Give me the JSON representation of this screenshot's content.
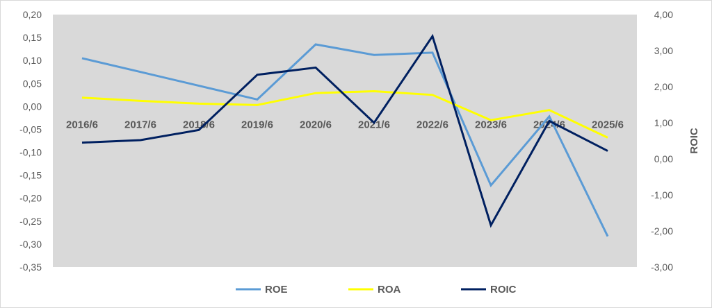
{
  "chart_data": {
    "type": "line",
    "categories": [
      "2016/6",
      "2017/6",
      "2018/6",
      "2019/6",
      "2020/6",
      "2021/6",
      "2022/6",
      "2023/6",
      "2024/6",
      "2025/6"
    ],
    "series": [
      {
        "name": "ROE",
        "axis": "left",
        "color": "#5b9bd5",
        "values": [
          0.105,
          0.075,
          0.045,
          0.015,
          0.135,
          0.112,
          0.117,
          -0.172,
          -0.022,
          -0.283
        ]
      },
      {
        "name": "ROA",
        "axis": "left",
        "color": "#ffff00",
        "values": [
          0.019,
          0.012,
          0.006,
          0.003,
          0.029,
          0.033,
          0.025,
          -0.03,
          -0.008,
          -0.068
        ]
      },
      {
        "name": "ROIC",
        "axis": "right",
        "color": "#002060",
        "values": [
          0.45,
          0.52,
          0.8,
          2.33,
          2.53,
          1.0,
          3.4,
          -1.84,
          1.05,
          0.22
        ]
      }
    ],
    "y_left": {
      "min": -0.35,
      "max": 0.2,
      "step": 0.05,
      "label": "",
      "ticks": [
        "-0,35",
        "-0,30",
        "-0,25",
        "-0,20",
        "-0,15",
        "-0,10",
        "-0,05",
        "0,00",
        "0,05",
        "0,10",
        "0,15",
        "0,20"
      ]
    },
    "y_right": {
      "min": -3,
      "max": 4,
      "step": 1,
      "label": "ROIC",
      "ticks": [
        "-3,00",
        "-2,00",
        "-1,00",
        "0,00",
        "1,00",
        "2,00",
        "3,00",
        "4,00"
      ]
    },
    "plot_background": "#d9d9d9",
    "grid": false,
    "legend_position": "bottom"
  }
}
